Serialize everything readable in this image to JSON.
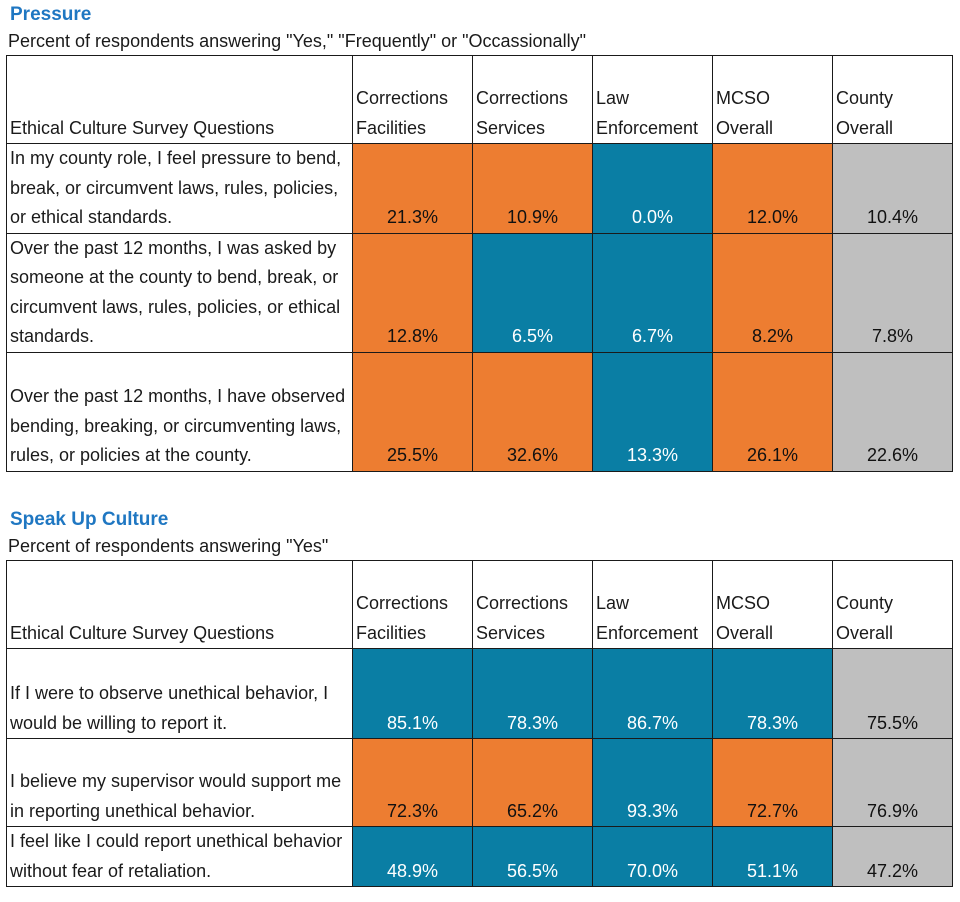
{
  "colors": {
    "title": "#1f77c2",
    "orange": "#ed7d31",
    "blue": "#0a7ea4",
    "gray": "#bfbfbf"
  },
  "sections": [
    {
      "title": "Pressure",
      "subtitle": "Percent of respondents answering \"Yes,\" \"Frequently\" or \"Occassionally\"",
      "headers": {
        "question": "Ethical Culture Survey Questions",
        "columns": [
          [
            "Corrections",
            "Facilities"
          ],
          [
            "Corrections",
            "Services"
          ],
          [
            "Law",
            "Enforcement"
          ],
          [
            "MCSO",
            "Overall"
          ],
          [
            "County",
            "Overall"
          ]
        ]
      },
      "rows": [
        {
          "question": "In my county role, I feel pressure to bend, break, or circumvent laws, rules, policies, or ethical standards.",
          "values": [
            "21.3%",
            "10.9%",
            "0.0%",
            "12.0%",
            "10.4%"
          ],
          "colors": [
            "orange",
            "orange",
            "blue",
            "orange",
            "gray"
          ]
        },
        {
          "question": "Over the past 12 months, I was asked by someone at the county to bend, break, or circumvent laws, rules, policies, or ethical standards.",
          "values": [
            "12.8%",
            "6.5%",
            "6.7%",
            "8.2%",
            "7.8%"
          ],
          "colors": [
            "orange",
            "blue",
            "blue",
            "orange",
            "gray"
          ]
        },
        {
          "question": "Over the past 12 months, I have observed bending, breaking, or circumventing laws, rules, or policies at the county.",
          "values": [
            "25.5%",
            "32.6%",
            "13.3%",
            "26.1%",
            "22.6%"
          ],
          "colors": [
            "orange",
            "orange",
            "blue",
            "orange",
            "gray"
          ]
        }
      ]
    },
    {
      "title": "Speak Up Culture",
      "subtitle": "Percent of respondents answering \"Yes\"",
      "headers": {
        "question": "Ethical Culture Survey Questions",
        "columns": [
          [
            "Corrections",
            "Facilities"
          ],
          [
            "Corrections",
            "Services"
          ],
          [
            "Law",
            "Enforcement"
          ],
          [
            "MCSO",
            "Overall"
          ],
          [
            "County",
            "Overall"
          ]
        ]
      },
      "rows": [
        {
          "question": "If I were to observe unethical behavior, I would be willing to report it.",
          "values": [
            "85.1%",
            "78.3%",
            "86.7%",
            "78.3%",
            "75.5%"
          ],
          "colors": [
            "blue",
            "blue",
            "blue",
            "blue",
            "gray"
          ]
        },
        {
          "question": "I believe my supervisor would support me in reporting unethical behavior.",
          "values": [
            "72.3%",
            "65.2%",
            "93.3%",
            "72.7%",
            "76.9%"
          ],
          "colors": [
            "orange",
            "orange",
            "blue",
            "orange",
            "gray"
          ]
        },
        {
          "question": "I feel like I could report unethical behavior without fear of retaliation.",
          "values": [
            "48.9%",
            "56.5%",
            "70.0%",
            "51.1%",
            "47.2%"
          ],
          "colors": [
            "blue",
            "blue",
            "blue",
            "blue",
            "gray"
          ]
        }
      ]
    }
  ]
}
